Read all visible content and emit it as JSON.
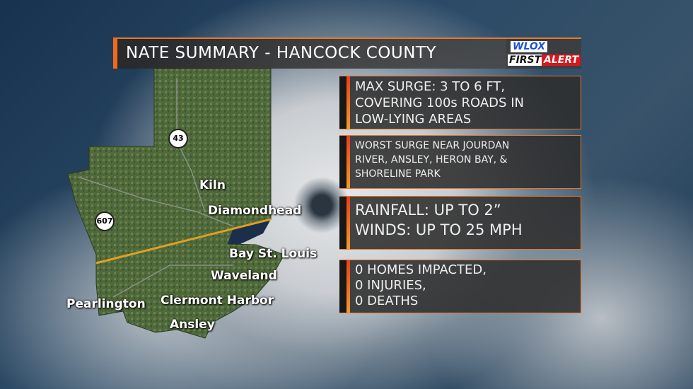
{
  "header": {
    "title": "NATE SUMMARY - HANCOCK COUNTY",
    "logo": {
      "top": "WLOX",
      "bottom_left": "FIRST",
      "bottom_right": "ALERT"
    }
  },
  "colors": {
    "accent": "#e8772a",
    "logo_red": "#d8181e",
    "logo_blue": "#1e56c8"
  },
  "map": {
    "highways": [
      "43",
      "607"
    ],
    "places": [
      "Kiln",
      "Diamondhead",
      "Bay St. Louis",
      "Waveland",
      "Pearlington",
      "Clermont Harbor",
      "Ansley"
    ]
  },
  "boxes": [
    {
      "text": "MAX SURGE: 3 TO 6 FT,\nCOVERING 100s ROADS IN\nLOW-LYING AREAS"
    },
    {
      "text": "WORST SURGE NEAR JOURDAN\nRIVER, ANSLEY, HERON BAY, &\nSHORELINE PARK"
    },
    {
      "text": "RAINFALL: UP TO 2”\nWINDS: UP TO 25 MPH"
    },
    {
      "text": "0 HOMES IMPACTED,\n0 INJURIES,\n0 DEATHS"
    }
  ]
}
